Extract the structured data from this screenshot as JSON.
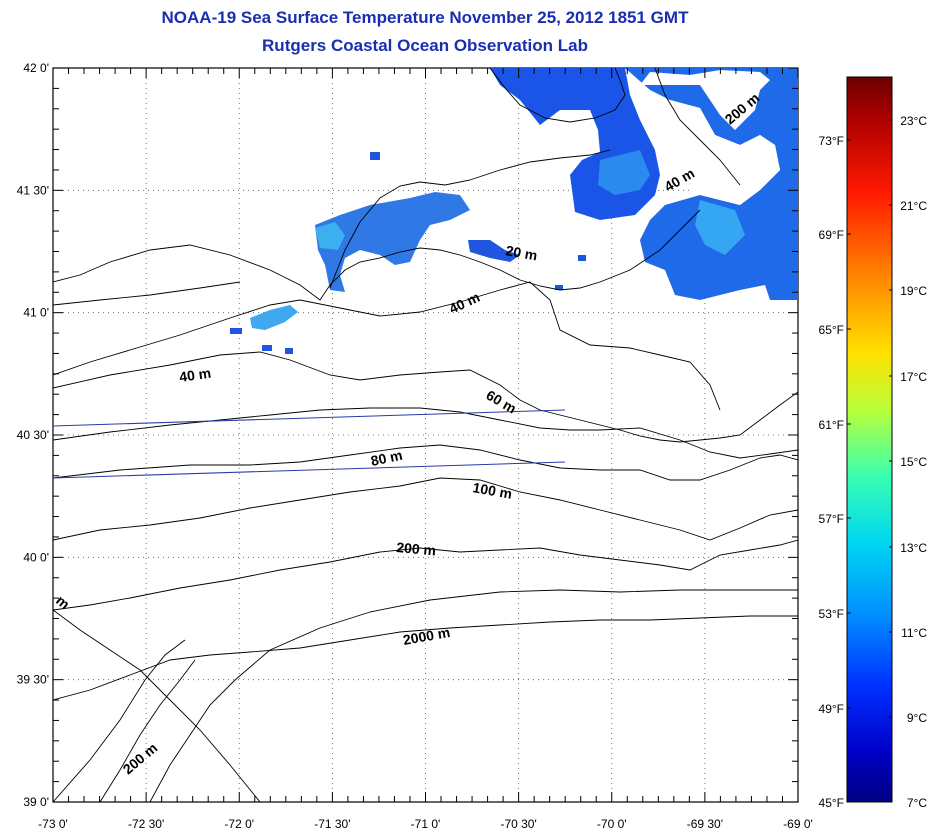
{
  "title": {
    "line1": "NOAA-19 Sea Surface Temperature November 25, 2012 1851 GMT",
    "line2": "Rutgers Coastal Ocean Observation Lab"
  },
  "map": {
    "lat_labels": [
      "42 0'",
      "41 30'",
      "41 0'",
      "40 30'",
      "40 0'",
      "39 30'",
      "39 0'"
    ],
    "lon_labels": [
      "-73 0'",
      "-72 30'",
      "-72 0'",
      "-71 30'",
      "-71 0'",
      "-70 30'",
      "-70 0'",
      "-69 30'",
      "-69 0'"
    ],
    "contour_labels": [
      "200 m",
      "40 m",
      "20 m",
      "40 m",
      "40 m",
      "60 m",
      "80 m",
      "100 m",
      "200 m",
      "2000 m",
      "200 m",
      "m"
    ]
  },
  "colorbar": {
    "celsius_labels": [
      "23°C",
      "21°C",
      "19°C",
      "17°C",
      "15°C",
      "13°C",
      "11°C",
      "9°C",
      "7°C"
    ],
    "fahrenheit_labels": [
      "73°F",
      "69°F",
      "65°F",
      "61°F",
      "57°F",
      "53°F",
      "49°F",
      "45°F"
    ],
    "colors": [
      "#6b0000",
      "#c80000",
      "#ff3a00",
      "#ff9000",
      "#ffe000",
      "#b8ff3a",
      "#3affb0",
      "#00d8f0",
      "#0090ff",
      "#0030ff",
      "#0000c8",
      "#000080"
    ]
  }
}
